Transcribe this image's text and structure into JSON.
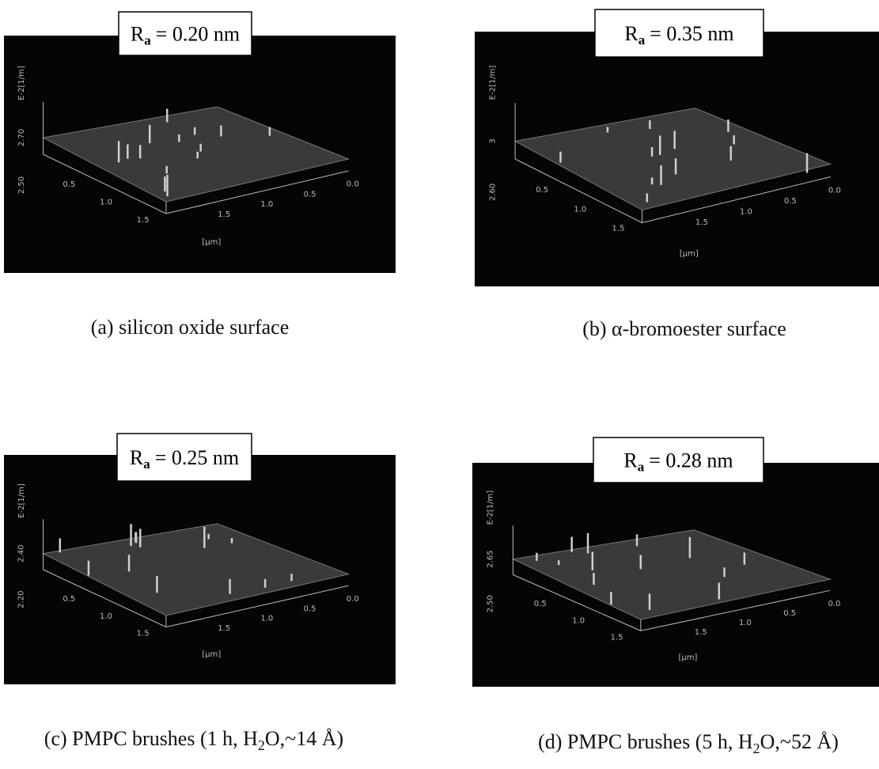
{
  "panels": [
    {
      "roughness": {
        "symbol": "R",
        "subscript": "a",
        "value": "=  0.20 nm"
      },
      "z_axis": {
        "unit": "E-2[1/m]",
        "ticks": [
          "2.70",
          "2.50"
        ]
      },
      "x_ticks": [
        "0.5",
        "1.0",
        "1.5"
      ],
      "y_ticks": [
        "1.5",
        "1.0",
        "0.5",
        "0.0"
      ],
      "axis_unit": "[µm]",
      "caption": [
        "(a) silicon oxide surface"
      ]
    },
    {
      "roughness": {
        "symbol": "R",
        "subscript": "a",
        "value": "=  0.35  nm"
      },
      "z_axis": {
        "unit": "E-2[1/m]",
        "ticks": [
          "3",
          "2.60"
        ]
      },
      "x_ticks": [
        "0.5",
        "1.0",
        "1.5"
      ],
      "y_ticks": [
        "1.5",
        "1.0",
        "0.5",
        "0.0"
      ],
      "axis_unit": "[µm]",
      "caption": [
        "(b) α-bromoester surface"
      ]
    },
    {
      "roughness": {
        "symbol": "R",
        "subscript": "a",
        "value": "=  0.25 nm"
      },
      "z_axis": {
        "unit": "E-2[1/m]",
        "ticks": [
          "2.40",
          "2.20"
        ]
      },
      "x_ticks": [
        "0.5",
        "1.0",
        "1.5"
      ],
      "y_ticks": [
        "1.5",
        "1.0",
        "0.5",
        "0.0"
      ],
      "axis_unit": "[µm]",
      "caption": [
        "(c) PMPC brushes (1 h, H",
        "2",
        "O,~14 Å)"
      ]
    },
    {
      "roughness": {
        "symbol": "R",
        "subscript": "a",
        "value": "=  0.28 nm"
      },
      "z_axis": {
        "unit": "E-2[1/m]",
        "ticks": [
          "2.65",
          "2.50"
        ]
      },
      "x_ticks": [
        "0.5",
        "1.0",
        "1.5"
      ],
      "y_ticks": [
        "1.5",
        "1.0",
        "0.5",
        "0.0"
      ],
      "axis_unit": "[µm]",
      "caption": [
        "(d) PMPC brushes (5 h, H",
        "2",
        "O,~52 Å)"
      ]
    }
  ]
}
